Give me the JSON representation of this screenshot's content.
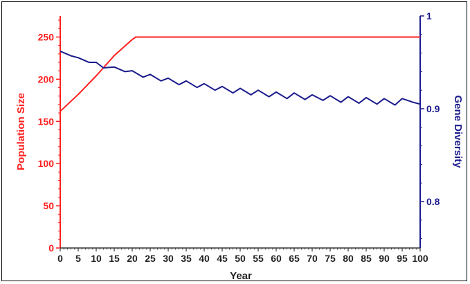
{
  "chart_data": {
    "type": "line",
    "xlabel": "Year",
    "ylabel_left": "Population Size",
    "ylabel_right": "Gene Diversity",
    "xlim": [
      0,
      100
    ],
    "ylim_left": [
      0,
      275
    ],
    "ylim_right": [
      0.75,
      1.0
    ],
    "x_ticks": [
      0,
      5,
      10,
      15,
      20,
      25,
      30,
      35,
      40,
      45,
      50,
      55,
      60,
      65,
      70,
      75,
      80,
      85,
      90,
      95,
      100
    ],
    "y_left_ticks": [
      0,
      50,
      100,
      150,
      200,
      250
    ],
    "y_right_ticks": [
      0.8,
      0.9,
      1
    ],
    "grid": false,
    "colors": {
      "population": "#ff2020",
      "diversity": "#1a1a8c"
    },
    "series": [
      {
        "axis": "left",
        "x": [
          0,
          5,
          10,
          15,
          20,
          21,
          22,
          100
        ],
        "values": [
          162,
          182,
          204,
          228,
          247,
          250,
          250,
          250
        ]
      },
      {
        "axis": "right",
        "x": [
          0,
          3,
          5,
          8,
          10,
          12,
          15,
          18,
          20,
          23,
          25,
          28,
          30,
          33,
          35,
          38,
          40,
          43,
          45,
          48,
          50,
          53,
          55,
          58,
          60,
          63,
          65,
          68,
          70,
          73,
          75,
          78,
          80,
          83,
          85,
          88,
          90,
          93,
          95,
          98,
          100
        ],
        "values": [
          0.962,
          0.957,
          0.955,
          0.95,
          0.95,
          0.944,
          0.945,
          0.94,
          0.941,
          0.934,
          0.937,
          0.93,
          0.933,
          0.926,
          0.93,
          0.923,
          0.927,
          0.92,
          0.924,
          0.917,
          0.922,
          0.915,
          0.92,
          0.913,
          0.918,
          0.911,
          0.917,
          0.91,
          0.915,
          0.909,
          0.914,
          0.907,
          0.913,
          0.906,
          0.912,
          0.905,
          0.911,
          0.904,
          0.911,
          0.907,
          0.905
        ]
      }
    ]
  }
}
